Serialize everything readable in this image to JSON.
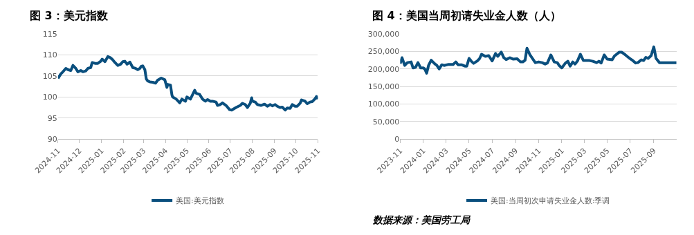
{
  "chart_data": [
    {
      "type": "line",
      "title": "图 3：美元指数",
      "legend": "bottom",
      "grid": "y",
      "marker": "none",
      "line_style": "solid",
      "xlim": [
        "2024-11-01",
        "2025-11-01"
      ],
      "xticks": [
        {
          "value": "2024-11-01",
          "label": "2024-11"
        },
        {
          "value": "2024-12-01",
          "label": "2024-12"
        },
        {
          "value": "2025-01-01",
          "label": "2025-01"
        },
        {
          "value": "2025-02-01",
          "label": "2025-02"
        },
        {
          "value": "2025-03-01",
          "label": "2025-03"
        },
        {
          "value": "2025-04-01",
          "label": "2025-04"
        },
        {
          "value": "2025-05-01",
          "label": "2025-05"
        },
        {
          "value": "2025-06-01",
          "label": "2025-06"
        },
        {
          "value": "2025-07-01",
          "label": "2025-07"
        },
        {
          "value": "2025-08-01",
          "label": "2025-08"
        },
        {
          "value": "2025-09-01",
          "label": "2025-09"
        },
        {
          "value": "2025-10-01",
          "label": "2025-10"
        },
        {
          "value": "2025-11-01",
          "label": "2025-11"
        }
      ],
      "ylim": [
        90,
        115
      ],
      "yticks": [
        90,
        95,
        100,
        105,
        110,
        115
      ],
      "x": [
        "2024-11-01",
        "2024-11-05",
        "2024-11-08",
        "2024-11-12",
        "2024-11-15",
        "2024-11-19",
        "2024-11-22",
        "2024-11-26",
        "2024-11-29",
        "2024-12-03",
        "2024-12-06",
        "2024-12-10",
        "2024-12-13",
        "2024-12-17",
        "2024-12-19",
        "2024-12-23",
        "2024-12-27",
        "2024-12-31",
        "2025-01-02",
        "2025-01-06",
        "2025-01-10",
        "2025-01-13",
        "2025-01-16",
        "2025-01-20",
        "2025-01-24",
        "2025-01-28",
        "2025-01-31",
        "2025-02-03",
        "2025-02-06",
        "2025-02-10",
        "2025-02-14",
        "2025-02-18",
        "2025-02-21",
        "2025-02-24",
        "2025-02-26",
        "2025-02-28",
        "2025-03-03",
        "2025-03-05",
        "2025-03-07",
        "2025-03-10",
        "2025-03-14",
        "2025-03-18",
        "2025-03-21",
        "2025-03-26",
        "2025-03-31",
        "2025-04-03",
        "2025-04-04",
        "2025-04-08",
        "2025-04-10",
        "2025-04-11",
        "2025-04-16",
        "2025-04-21",
        "2025-04-24",
        "2025-04-29",
        "2025-05-01",
        "2025-05-06",
        "2025-05-12",
        "2025-05-14",
        "2025-05-19",
        "2025-05-23",
        "2025-05-27",
        "2025-05-30",
        "2025-06-03",
        "2025-06-06",
        "2025-06-11",
        "2025-06-13",
        "2025-06-17",
        "2025-06-20",
        "2025-06-25",
        "2025-06-30",
        "2025-07-03",
        "2025-07-07",
        "2025-07-10",
        "2025-07-15",
        "2025-07-18",
        "2025-07-22",
        "2025-07-25",
        "2025-07-29",
        "2025-07-31",
        "2025-08-01",
        "2025-08-05",
        "2025-08-08",
        "2025-08-13",
        "2025-08-18",
        "2025-08-22",
        "2025-08-26",
        "2025-08-29",
        "2025-09-02",
        "2025-09-05",
        "2025-09-09",
        "2025-09-12",
        "2025-09-16",
        "2025-09-19",
        "2025-09-23",
        "2025-09-26",
        "2025-09-30",
        "2025-10-03",
        "2025-10-07",
        "2025-10-09",
        "2025-10-14",
        "2025-10-17",
        "2025-10-21",
        "2025-10-24",
        "2025-10-28",
        "2025-10-30",
        "2025-11-01"
      ],
      "series": [
        {
          "name": "美国:美元指数",
          "color": "#0a4f7e",
          "values": [
            104.4,
            105.5,
            106.0,
            106.8,
            106.5,
            106.3,
            107.5,
            106.8,
            106.0,
            106.3,
            106.0,
            106.2,
            106.8,
            107.0,
            108.2,
            108.0,
            108.0,
            108.5,
            109.0,
            108.4,
            109.6,
            109.4,
            109.0,
            108.2,
            107.5,
            107.8,
            108.4,
            108.5,
            107.8,
            108.3,
            107.0,
            106.8,
            106.5,
            106.8,
            107.3,
            107.4,
            106.5,
            104.3,
            103.8,
            103.6,
            103.5,
            103.3,
            104.0,
            104.5,
            104.1,
            102.3,
            103.0,
            102.8,
            100.5,
            100.0,
            99.5,
            98.6,
            99.5,
            99.0,
            100.0,
            99.5,
            101.6,
            100.9,
            100.6,
            99.5,
            99.0,
            99.4,
            99.0,
            99.0,
            98.8,
            98.0,
            98.2,
            98.6,
            98.0,
            97.0,
            96.9,
            97.3,
            97.6,
            98.0,
            98.5,
            98.2,
            97.5,
            98.5,
            99.8,
            99.0,
            98.8,
            98.2,
            98.0,
            98.3,
            97.8,
            98.2,
            97.9,
            98.2,
            97.8,
            97.5,
            97.6,
            96.9,
            97.4,
            97.3,
            98.2,
            97.8,
            97.8,
            98.5,
            99.3,
            99.0,
            98.4,
            98.8,
            98.9,
            99.6,
            100.1,
            99.5
          ]
        }
      ]
    },
    {
      "type": "line",
      "title": "图 4：美国当周初请失业金人数（人）",
      "legend": "bottom",
      "grid": "y",
      "marker": "none",
      "line_style": "solid",
      "annotations": [
        "数据来源：美国劳工局"
      ],
      "xlim": [
        "2023-11-01",
        "2025-10-31"
      ],
      "xticks": [
        {
          "value": "2023-11-01",
          "label": "2023-11"
        },
        {
          "value": "2024-01-01",
          "label": "2024-01"
        },
        {
          "value": "2024-03-01",
          "label": "2024-03"
        },
        {
          "value": "2024-05-01",
          "label": "2024-05"
        },
        {
          "value": "2024-07-01",
          "label": "2024-07"
        },
        {
          "value": "2024-09-01",
          "label": "2024-09"
        },
        {
          "value": "2024-11-01",
          "label": "2024-11"
        },
        {
          "value": "2025-01-01",
          "label": "2025-01"
        },
        {
          "value": "2025-03-01",
          "label": "2025-03"
        },
        {
          "value": "2025-05-01",
          "label": "2025-05"
        },
        {
          "value": "2025-07-01",
          "label": "2025-07"
        },
        {
          "value": "2025-09-01",
          "label": "2025-09"
        }
      ],
      "ylim": [
        0,
        300000
      ],
      "yticks": [
        0,
        {
          "value": 50000,
          "label": "50,000"
        },
        {
          "value": 100000,
          "label": "100,000"
        },
        {
          "value": 150000,
          "label": "150,000"
        },
        {
          "value": 200000,
          "label": "200,000"
        },
        {
          "value": 250000,
          "label": "250,000"
        },
        {
          "value": 300000,
          "label": "300,000"
        }
      ],
      "x": [
        "2023-11-01",
        "2023-11-06",
        "2023-11-13",
        "2023-11-20",
        "2023-11-30",
        "2023-12-05",
        "2023-12-12",
        "2023-12-18",
        "2023-12-25",
        "2024-01-01",
        "2024-01-05",
        "2024-01-10",
        "2024-01-15",
        "2024-01-22",
        "2024-01-31",
        "2024-02-06",
        "2024-02-12",
        "2024-02-19",
        "2024-02-25",
        "2024-03-08",
        "2024-03-20",
        "2024-03-27",
        "2024-04-02",
        "2024-04-11",
        "2024-04-20",
        "2024-04-25",
        "2024-05-01",
        "2024-05-07",
        "2024-05-13",
        "2024-05-23",
        "2024-05-29",
        "2024-06-03",
        "2024-06-13",
        "2024-06-22",
        "2024-07-01",
        "2024-07-10",
        "2024-07-16",
        "2024-07-25",
        "2024-08-01",
        "2024-08-07",
        "2024-08-17",
        "2024-08-26",
        "2024-09-05",
        "2024-09-14",
        "2024-09-20",
        "2024-09-26",
        "2024-10-01",
        "2024-10-09",
        "2024-10-23",
        "2024-11-01",
        "2024-11-10",
        "2024-11-18",
        "2024-11-24",
        "2024-12-03",
        "2024-12-12",
        "2024-12-20",
        "2024-12-25",
        "2025-01-01",
        "2025-01-10",
        "2025-01-17",
        "2025-01-23",
        "2025-01-30",
        "2025-02-05",
        "2025-02-11",
        "2025-02-19",
        "2025-02-27",
        "2025-03-15",
        "2025-03-24",
        "2025-04-03",
        "2025-04-09",
        "2025-04-15",
        "2025-04-23",
        "2025-05-01",
        "2025-05-14",
        "2025-05-20",
        "2025-06-02",
        "2025-06-08",
        "2025-06-18",
        "2025-06-27",
        "2025-07-05",
        "2025-07-15",
        "2025-07-21",
        "2025-07-30",
        "2025-08-05",
        "2025-08-11",
        "2025-08-17",
        "2025-08-25",
        "2025-09-01",
        "2025-09-07",
        "2025-09-16",
        "2025-10-31"
      ],
      "series": [
        {
          "name": "美国:当周初次申请失业金人数:季调",
          "color": "#0a4f7e",
          "values": [
            215000,
            232000,
            210000,
            218000,
            220000,
            203000,
            205000,
            218000,
            203000,
            203000,
            200000,
            188000,
            210000,
            225000,
            215000,
            210000,
            200000,
            212000,
            210000,
            213000,
            213000,
            220000,
            212000,
            212000,
            208000,
            208000,
            230000,
            222000,
            216000,
            223000,
            230000,
            242000,
            236000,
            238000,
            223000,
            244000,
            236000,
            248000,
            232000,
            227000,
            232000,
            228000,
            229000,
            220000,
            220000,
            225000,
            259000,
            240000,
            218000,
            220000,
            218000,
            214000,
            217000,
            240000,
            220000,
            218000,
            210000,
            203000,
            216000,
            222000,
            208000,
            220000,
            214000,
            222000,
            242000,
            224000,
            224000,
            222000,
            218000,
            222000,
            217000,
            240000,
            228000,
            226000,
            237000,
            248000,
            248000,
            240000,
            232000,
            226000,
            217000,
            218000,
            226000,
            224000,
            233000,
            230000,
            238000,
            263000,
            230000,
            218000,
            218000
          ]
        }
      ]
    }
  ]
}
